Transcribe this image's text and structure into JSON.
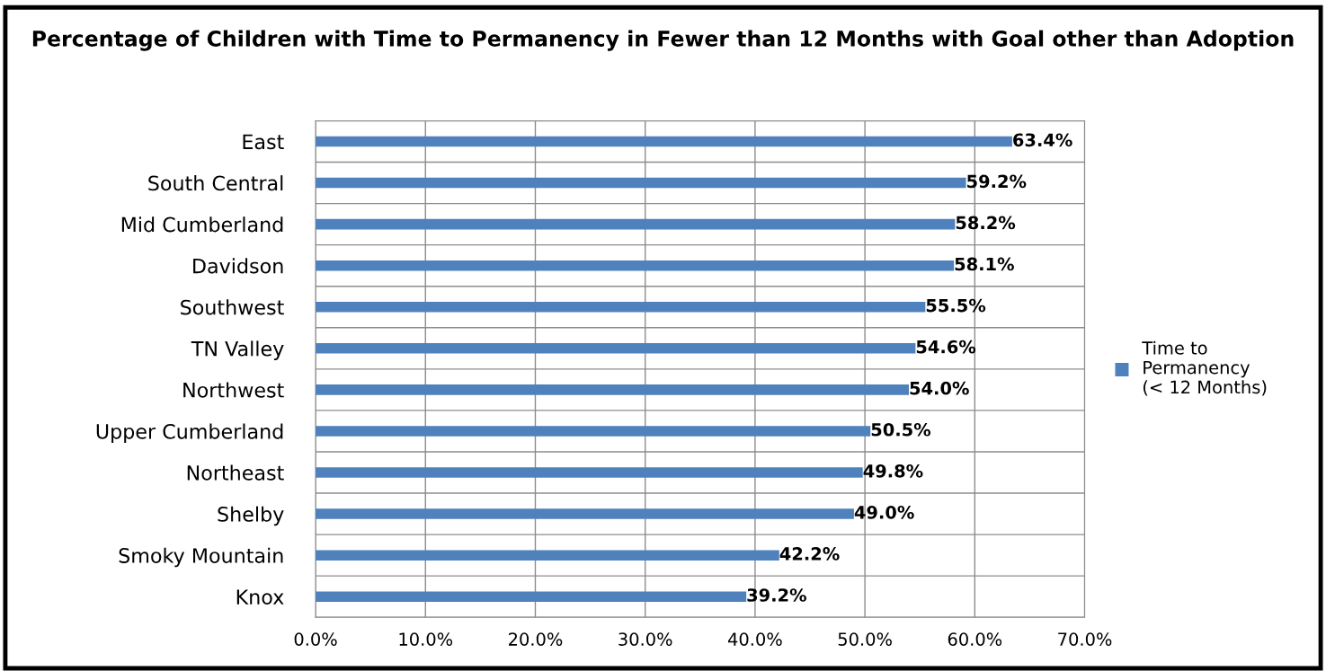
{
  "chart_data": {
    "type": "bar",
    "orientation": "horizontal",
    "title": "Percentage of Children with Time to Permanency in Fewer than 12 Months with Goal other than Adoption",
    "categories": [
      "East",
      "South Central",
      "Mid Cumberland",
      "Davidson",
      "Southwest",
      "TN Valley",
      "Northwest",
      "Upper Cumberland",
      "Northeast",
      "Shelby",
      "Smoky Mountain",
      "Knox"
    ],
    "series": [
      {
        "name": "Time to Permanency (< 12 Months)",
        "color": "#4f81bd",
        "values": [
          63.4,
          59.2,
          58.2,
          58.1,
          55.5,
          54.6,
          54.0,
          50.5,
          49.8,
          49.0,
          42.2,
          39.2
        ],
        "value_labels": [
          "63.4%",
          "59.2%",
          "58.2%",
          "58.1%",
          "55.5%",
          "54.6%",
          "54.0%",
          "50.5%",
          "49.8%",
          "49.0%",
          "42.2%",
          "39.2%"
        ]
      }
    ],
    "xlim": [
      0,
      70
    ],
    "xticks": [
      {
        "value": 0,
        "label": "0.0%"
      },
      {
        "value": 10,
        "label": "10.0%"
      },
      {
        "value": 20,
        "label": "20.0%"
      },
      {
        "value": 30,
        "label": "30.0%"
      },
      {
        "value": 40,
        "label": "40.0%"
      },
      {
        "value": 50,
        "label": "50.0%"
      },
      {
        "value": 60,
        "label": "60.0%"
      },
      {
        "value": 70,
        "label": "70.0%"
      }
    ],
    "grid": true,
    "legend": "right"
  }
}
